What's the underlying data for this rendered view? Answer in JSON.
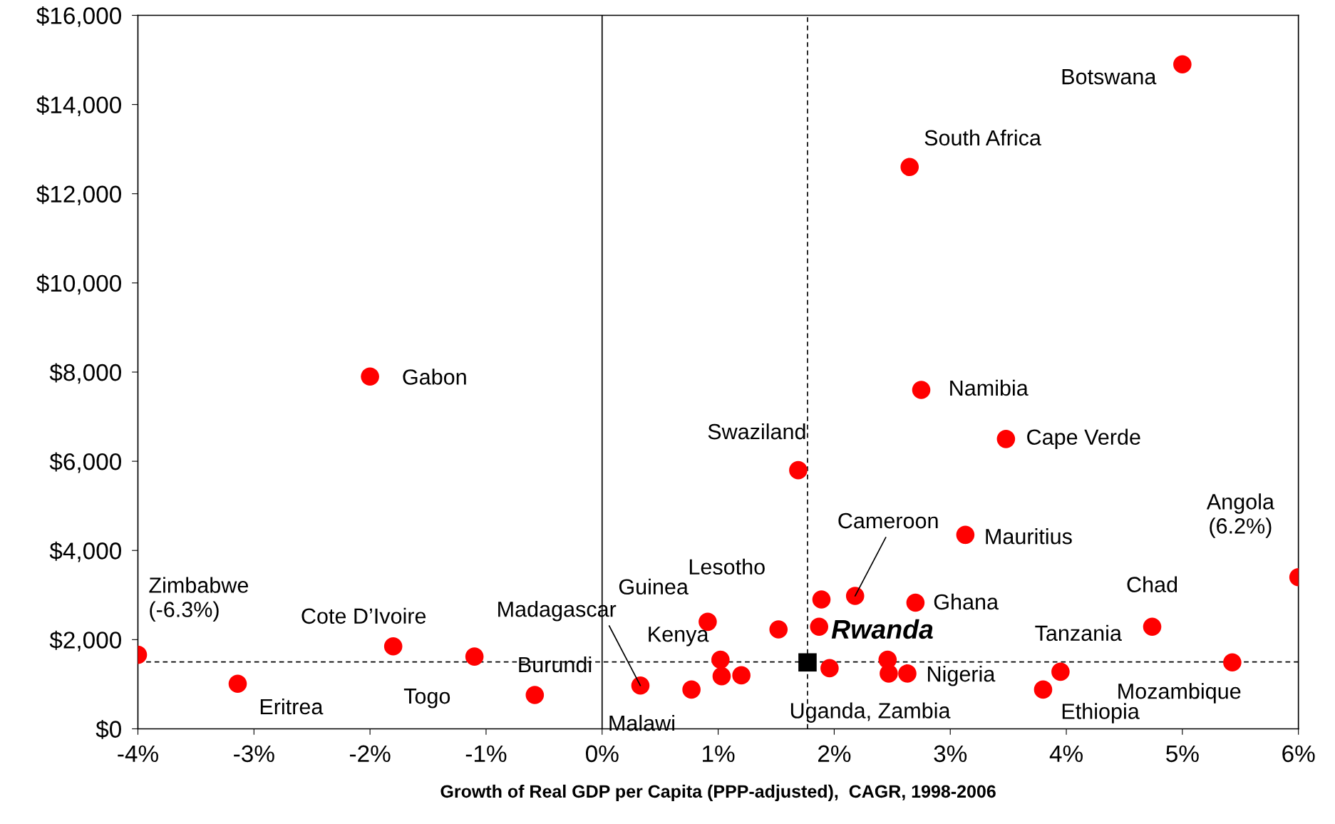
{
  "chart_data": {
    "type": "scatter",
    "xlabel": "Growth of Real GDP per Capita (PPP-adjusted),  CAGR, 1998-2006",
    "xlim": [
      -4,
      6
    ],
    "ylim": [
      0,
      16000
    ],
    "xticks": [
      {
        "value": -4,
        "label": "-4%"
      },
      {
        "value": -3,
        "label": "-3%"
      },
      {
        "value": -2,
        "label": "-2%"
      },
      {
        "value": -1,
        "label": "-1%"
      },
      {
        "value": 0,
        "label": "0%"
      },
      {
        "value": 1,
        "label": "1%"
      },
      {
        "value": 2,
        "label": "2%"
      },
      {
        "value": 3,
        "label": "3%"
      },
      {
        "value": 4,
        "label": "4%"
      },
      {
        "value": 5,
        "label": "5%"
      },
      {
        "value": 6,
        "label": "6%"
      }
    ],
    "yticks": [
      {
        "value": 0,
        "label": "$0"
      },
      {
        "value": 2000,
        "label": "$2,000"
      },
      {
        "value": 4000,
        "label": "$4,000"
      },
      {
        "value": 6000,
        "label": "$6,000"
      },
      {
        "value": 8000,
        "label": "$8,000"
      },
      {
        "value": 10000,
        "label": "$10,000"
      },
      {
        "value": 12000,
        "label": "$12,000"
      },
      {
        "value": 14000,
        "label": "$14,000"
      },
      {
        "value": 16000,
        "label": "$16,000"
      }
    ],
    "grid": false,
    "legend": false,
    "series": [
      {
        "color": "#ff0000",
        "marker": "circle",
        "x": [
          5.0,
          2.65,
          -2.0,
          2.75,
          3.48,
          1.69,
          3.13,
          6.0,
          2.18,
          1.89,
          2.7,
          0.91,
          4.74,
          1.52,
          1.87,
          -4.0,
          -1.8,
          -1.1,
          1.02,
          1.96,
          2.46,
          5.43,
          2.47,
          2.63,
          3.95,
          1.03,
          1.2,
          -3.14,
          0.33,
          0.77,
          3.8,
          -0.58
        ],
        "values": [
          14900,
          12600,
          7900,
          7600,
          6500,
          5800,
          4350,
          3400,
          2980,
          2900,
          2830,
          2400,
          2290,
          2230,
          2290,
          1660,
          1850,
          1620,
          1550,
          1360,
          1550,
          1490,
          1240,
          1240,
          1280,
          1180,
          1200,
          1010,
          970,
          880,
          880,
          760
        ]
      },
      {
        "color": "#000000",
        "marker": "square",
        "x": [
          1.77
        ],
        "values": [
          1490
        ]
      }
    ],
    "ref_lines": [
      {
        "axis": "x",
        "value": 0,
        "color": "#000000",
        "line_style": "solid"
      },
      {
        "axis": "x",
        "value": 1.77,
        "color": "#000000",
        "line_style": "dashed"
      },
      {
        "axis": "y",
        "value": 1500,
        "color": "#000000",
        "line_style": "dashed"
      }
    ],
    "annotations": [
      {
        "text": "Botswana",
        "x": 5.0,
        "y": 14900
      },
      {
        "text": "South Africa",
        "x": 2.65,
        "y": 12600
      },
      {
        "text": "Gabon",
        "x": -2.0,
        "y": 7900
      },
      {
        "text": "Namibia",
        "x": 2.75,
        "y": 7600
      },
      {
        "text": "Cape Verde",
        "x": 3.48,
        "y": 6500
      },
      {
        "text": "Swaziland",
        "x": 1.69,
        "y": 5800
      },
      {
        "text": "Mauritius",
        "x": 3.13,
        "y": 4350
      },
      {
        "text": "Angola\n(6.2%)",
        "x": 6.0,
        "y": 3400
      },
      {
        "text": "Cameroon",
        "x": 2.18,
        "y": 2980
      },
      {
        "text": "Lesotho",
        "x": 1.89,
        "y": 2900
      },
      {
        "text": "Ghana",
        "x": 2.7,
        "y": 2830
      },
      {
        "text": "Guinea",
        "x": 0.91,
        "y": 2400
      },
      {
        "text": "Chad",
        "x": 4.74,
        "y": 2290
      },
      {
        "text": "Zimbabwe\n(-6.3%)",
        "x": -4.0,
        "y": 1660
      },
      {
        "text": "Cote D’Ivoire",
        "x": -1.8,
        "y": 1850
      },
      {
        "text": "Togo",
        "x": -1.1,
        "y": 1620
      },
      {
        "text": "Burundi",
        "x": -0.58,
        "y": 760
      },
      {
        "text": "Madagascar",
        "x": 0.33,
        "y": 970
      },
      {
        "text": "Kenya",
        "x": 1.02,
        "y": 1550
      },
      {
        "text": "Rwanda",
        "x": 1.77,
        "y": 1490
      },
      {
        "text": "Tanzania",
        "x": 3.95,
        "y": 1280
      },
      {
        "text": "Mozambique",
        "x": 5.43,
        "y": 1490
      },
      {
        "text": "Nigeria",
        "x": 2.63,
        "y": 1240
      },
      {
        "text": "Uganda, Zambia",
        "x": 2.47,
        "y": 1240
      },
      {
        "text": "Eritrea",
        "x": -3.14,
        "y": 1010
      },
      {
        "text": "Malawi",
        "x": 0.77,
        "y": 880
      },
      {
        "text": "Ethiopia",
        "x": 3.8,
        "y": 880
      }
    ]
  }
}
